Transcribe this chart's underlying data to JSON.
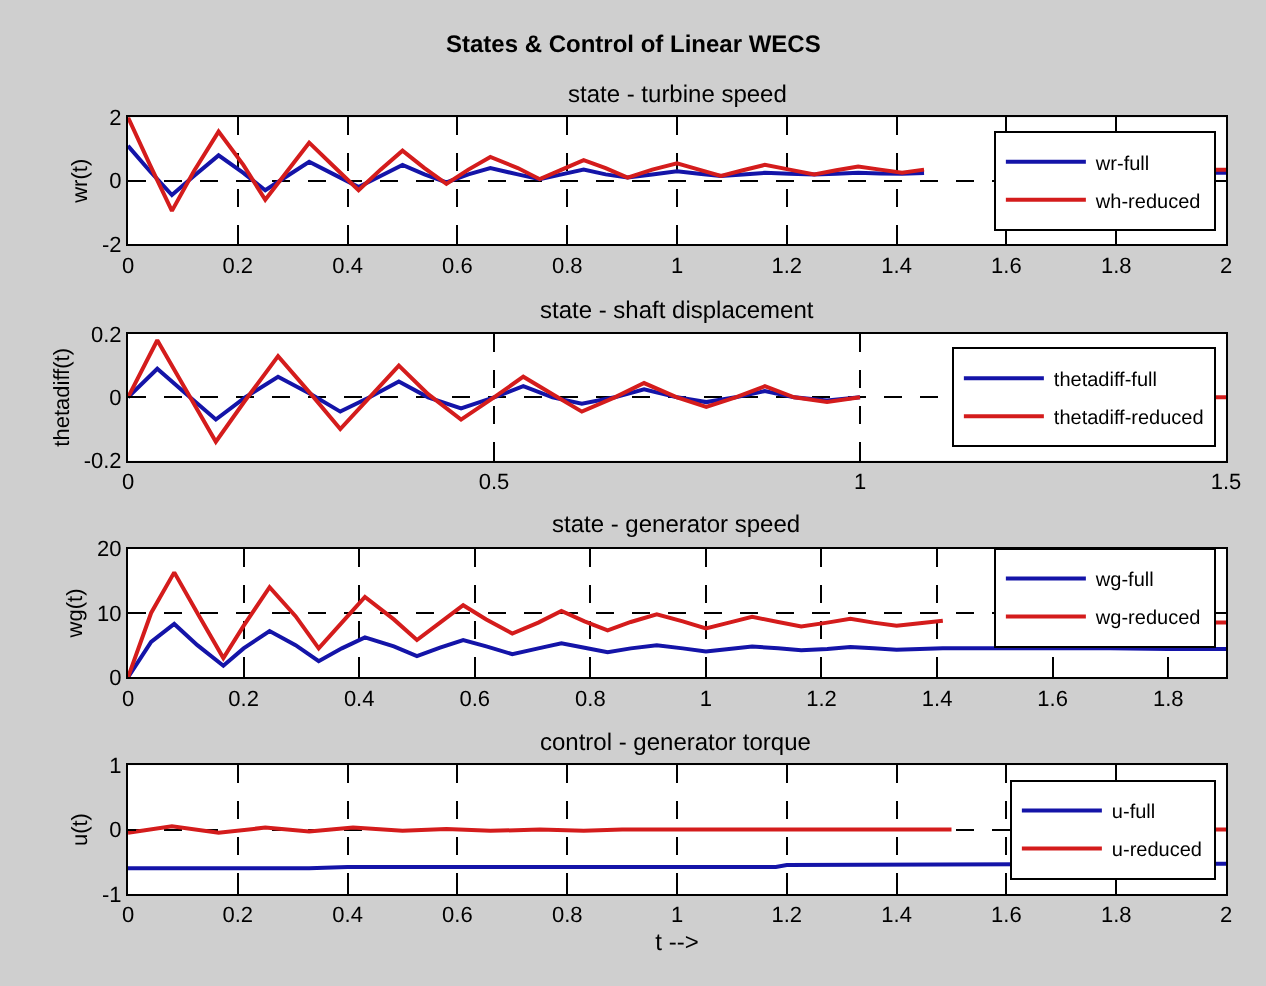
{
  "chart_data": [
    {
      "type": "line",
      "title": "States & Control of Linear WECS",
      "subtitle": "state - turbine speed",
      "ylabel": "wr(t)",
      "x": [
        0,
        0.04,
        0.08,
        0.12,
        0.165,
        0.21,
        0.25,
        0.29,
        0.33,
        0.375,
        0.42,
        0.46,
        0.5,
        0.54,
        0.58,
        0.62,
        0.66,
        0.71,
        0.75,
        0.79,
        0.83,
        0.87,
        0.91,
        0.955,
        1.0,
        1.04,
        1.08,
        1.12,
        1.16,
        1.205,
        1.25,
        1.29,
        1.33,
        1.37,
        1.41,
        1.45,
        1.6,
        1.8,
        1.98,
        2.0
      ],
      "series": [
        {
          "name": "wr-full",
          "color": "#1414a8",
          "values": [
            1.1,
            0.3,
            -0.45,
            0.15,
            0.8,
            0.25,
            -0.3,
            0.15,
            0.6,
            0.2,
            -0.2,
            0.15,
            0.5,
            0.2,
            -0.05,
            0.2,
            0.4,
            0.2,
            0.05,
            0.2,
            0.35,
            0.2,
            0.1,
            0.2,
            0.3,
            0.22,
            0.15,
            0.2,
            0.25,
            0.22,
            0.2,
            0.22,
            0.25,
            0.23,
            0.22,
            0.24,
            null,
            null,
            0.25,
            0.25
          ]
        },
        {
          "name": "wh-reduced",
          "color": "#d41c1c",
          "values": [
            2,
            0.5,
            -0.95,
            0.3,
            1.55,
            0.5,
            -0.6,
            0.3,
            1.2,
            0.45,
            -0.3,
            0.35,
            0.95,
            0.4,
            -0.1,
            0.35,
            0.75,
            0.4,
            0.05,
            0.35,
            0.65,
            0.4,
            0.1,
            0.35,
            0.55,
            0.35,
            0.15,
            0.33,
            0.5,
            0.35,
            0.2,
            0.33,
            0.45,
            0.35,
            0.25,
            0.35,
            null,
            null,
            0.35,
            0.35
          ]
        }
      ],
      "xlim": [
        0,
        2
      ],
      "xticks": [
        0,
        0.2,
        0.4,
        0.6,
        0.8,
        1,
        1.2,
        1.4,
        1.6,
        1.8,
        2
      ],
      "ylim": [
        -2,
        2
      ],
      "yticks": [
        -2,
        0,
        2
      ],
      "grid": true,
      "legend": "right"
    },
    {
      "type": "line",
      "title": "state - shaft displacement",
      "ylabel": "thetadiff(t)",
      "x": [
        0,
        0.04,
        0.08,
        0.12,
        0.16,
        0.205,
        0.25,
        0.29,
        0.33,
        0.37,
        0.41,
        0.455,
        0.5,
        0.54,
        0.58,
        0.62,
        0.665,
        0.705,
        0.75,
        0.79,
        0.83,
        0.87,
        0.91,
        0.955,
        1.0,
        1.04,
        1.2,
        1.48,
        1.5
      ],
      "series": [
        {
          "name": "thetadiff-full",
          "color": "#1414a8",
          "values": [
            0,
            0.09,
            0.01,
            -0.07,
            0,
            0.065,
            0.01,
            -0.045,
            0,
            0.05,
            0,
            -0.035,
            0,
            0.035,
            0,
            -0.02,
            0,
            0.025,
            0,
            -0.015,
            0,
            0.02,
            0,
            -0.01,
            0,
            null,
            null,
            null,
            null
          ]
        },
        {
          "name": "thetadiff-reduced",
          "color": "#d41c1c",
          "values": [
            0,
            0.18,
            0.02,
            -0.14,
            -0.01,
            0.13,
            0.01,
            -0.1,
            0,
            0.1,
            0.01,
            -0.07,
            0,
            0.065,
            0.01,
            -0.045,
            0,
            0.045,
            0,
            -0.03,
            0,
            0.035,
            0,
            -0.015,
            0,
            null,
            null,
            0,
            0
          ]
        }
      ],
      "xlim": [
        0,
        1.5
      ],
      "xticks": [
        0,
        0.5,
        1,
        1.5
      ],
      "ylim": [
        -0.2,
        0.2
      ],
      "yticks": [
        -0.2,
        0,
        0.2
      ],
      "grid": true,
      "legend": "right"
    },
    {
      "type": "line",
      "title": "state - generator speed",
      "ylabel": "wg(t)",
      "x": [
        0,
        0.04,
        0.08,
        0.12,
        0.165,
        0.2,
        0.245,
        0.29,
        0.33,
        0.37,
        0.41,
        0.46,
        0.5,
        0.54,
        0.58,
        0.62,
        0.665,
        0.71,
        0.75,
        0.79,
        0.83,
        0.87,
        0.915,
        0.96,
        1.0,
        1.04,
        1.08,
        1.125,
        1.165,
        1.21,
        1.25,
        1.29,
        1.33,
        1.37,
        1.41,
        1.5,
        1.6,
        1.7,
        1.8,
        1.88,
        1.9
      ],
      "series": [
        {
          "name": "wg-full",
          "color": "#1414a8",
          "values": [
            0,
            5.5,
            8.3,
            5,
            1.8,
            4.5,
            7.2,
            5,
            2.5,
            4.5,
            6.2,
            4.8,
            3.3,
            4.6,
            5.8,
            4.8,
            3.6,
            4.5,
            5.3,
            4.6,
            3.9,
            4.5,
            5,
            4.5,
            4,
            4.4,
            4.8,
            4.5,
            4.2,
            4.4,
            4.7,
            4.5,
            4.3,
            4.4,
            4.5,
            4.5,
            4.5,
            4.5,
            4.4,
            4.4,
            4.4
          ]
        },
        {
          "name": "wg-reduced",
          "color": "#d41c1c",
          "values": [
            0,
            10,
            16.3,
            10,
            3,
            8,
            14,
            9.5,
            4.5,
            8.5,
            12.5,
            9,
            5.8,
            8.5,
            11.2,
            9,
            6.8,
            8.5,
            10.3,
            8.7,
            7.3,
            8.6,
            9.8,
            8.7,
            7.6,
            8.5,
            9.4,
            8.6,
            7.9,
            8.5,
            9.1,
            8.5,
            8,
            8.4,
            8.8,
            null,
            null,
            null,
            null,
            8.5,
            8.5
          ]
        }
      ],
      "xlim": [
        0,
        1.9
      ],
      "xticks": [
        0,
        0.2,
        0.4,
        0.6,
        0.8,
        1,
        1.2,
        1.4,
        1.6,
        1.8
      ],
      "ylim": [
        0,
        20
      ],
      "yticks": [
        0,
        10,
        20
      ],
      "grid": true,
      "legend": "right"
    },
    {
      "type": "line",
      "title": "control - generator torque",
      "xlabel": "t -->",
      "ylabel": "u(t)",
      "series": [
        {
          "name": "u-full",
          "color": "#1414a8",
          "x": [
            0,
            0.33,
            0.4,
            1.18,
            1.2,
            2.0
          ],
          "values": [
            -0.6,
            -0.6,
            -0.58,
            -0.58,
            -0.55,
            -0.53
          ]
        },
        {
          "name": "u-reduced",
          "color": "#d41c1c",
          "x": [
            0,
            0.08,
            0.165,
            0.25,
            0.33,
            0.41,
            0.5,
            0.58,
            0.66,
            0.75,
            0.83,
            0.9,
            1.5,
            1.75,
            1.98,
            2.0
          ],
          "values": [
            -0.05,
            0.05,
            -0.05,
            0.03,
            -0.03,
            0.03,
            -0.02,
            0.01,
            -0.02,
            0,
            -0.02,
            0,
            0,
            null,
            0,
            0
          ]
        }
      ],
      "xlim": [
        0,
        2
      ],
      "xticks": [
        0,
        0.2,
        0.4,
        0.6,
        0.8,
        1,
        1.2,
        1.4,
        1.6,
        1.8,
        2
      ],
      "ylim": [
        -1,
        1
      ],
      "yticks": [
        -1,
        0,
        1
      ],
      "grid": true,
      "legend": "right"
    }
  ]
}
